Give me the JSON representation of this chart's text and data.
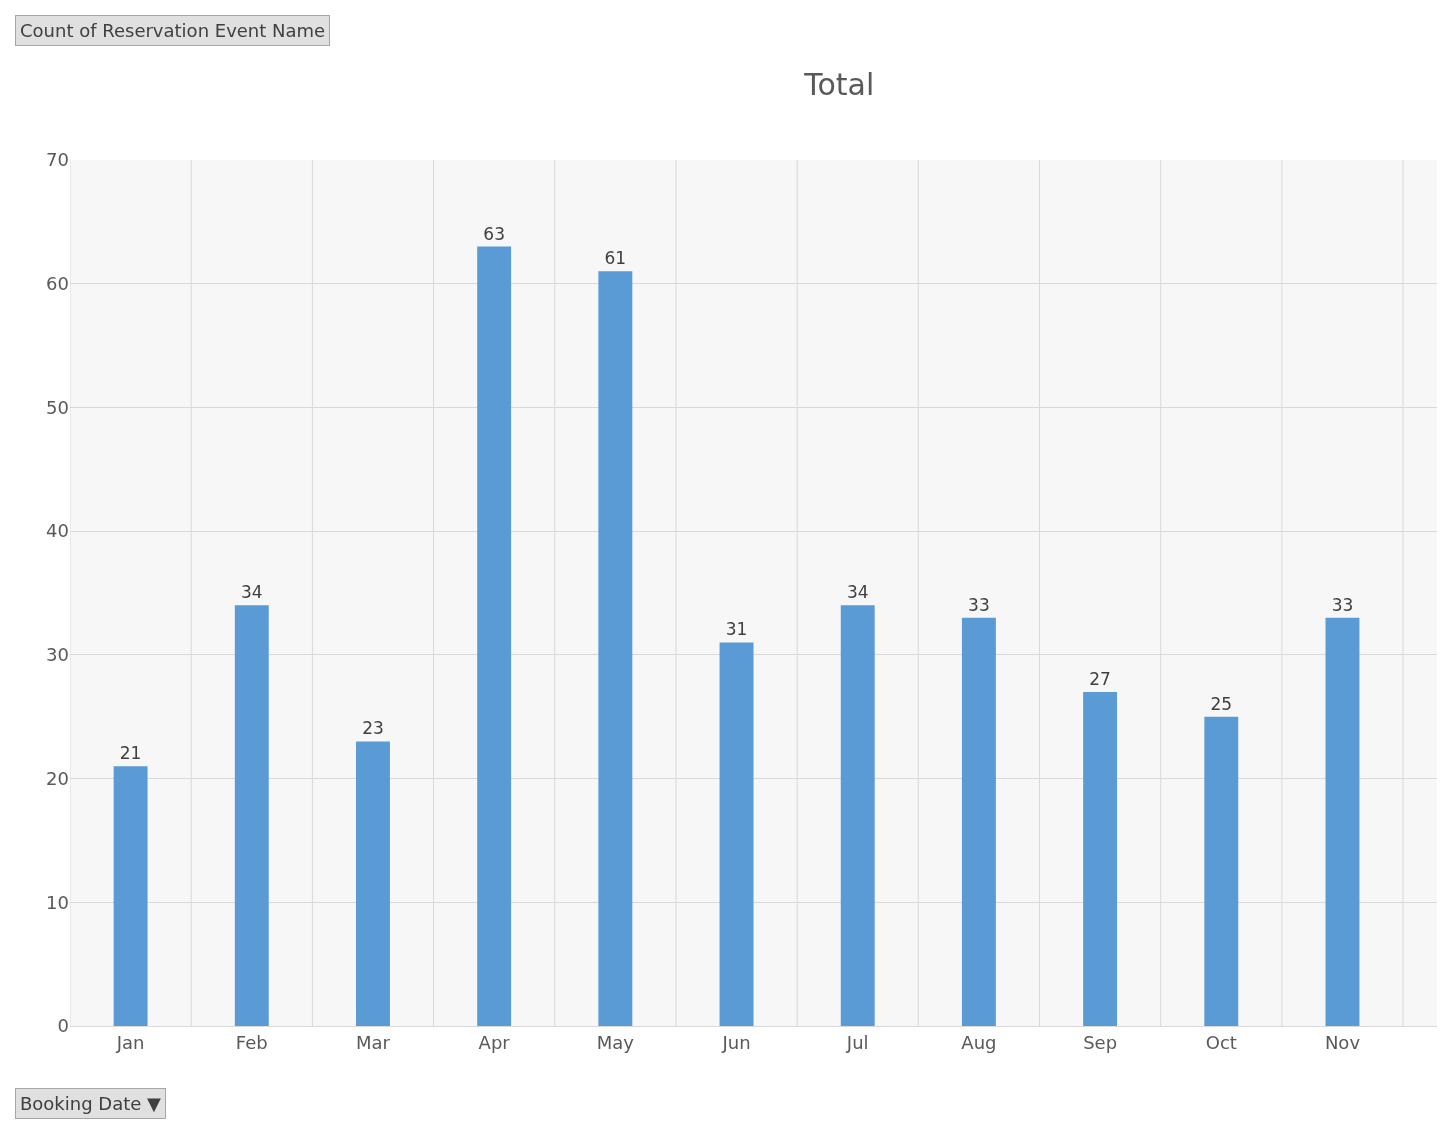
{
  "chart_data": {
    "type": "bar",
    "title": "Total",
    "categories": [
      "Jan",
      "Feb",
      "Mar",
      "Apr",
      "May",
      "Jun",
      "Jul",
      "Aug",
      "Sep",
      "Oct",
      "Nov"
    ],
    "values": [
      21,
      34,
      23,
      63,
      61,
      31,
      34,
      33,
      27,
      25,
      33
    ],
    "color": "#5b9bd5",
    "ylim": [
      0,
      70
    ],
    "yticks": [
      0,
      10,
      20,
      30,
      40,
      50,
      60,
      70
    ],
    "grid": true,
    "data_labels": true,
    "annotations": [
      "Count of Reservation Event Name",
      "Booking Date ▼"
    ]
  }
}
